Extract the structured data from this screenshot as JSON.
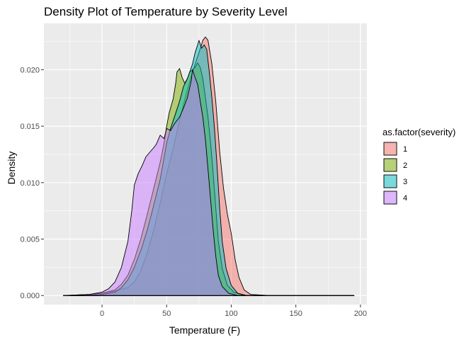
{
  "chart_data": {
    "type": "area",
    "title": "Density Plot of Temperature by Severity Level",
    "xlabel": "Temperature (F)",
    "ylabel": "Density",
    "xlim": [
      -45,
      205
    ],
    "ylim": [
      -0.0008,
      0.0241
    ],
    "x_ticks": [
      0,
      50,
      100,
      150,
      200
    ],
    "y_ticks": [
      0.0,
      0.005,
      0.01,
      0.015,
      0.02
    ],
    "y_tick_labels": [
      "0.000",
      "0.005",
      "0.010",
      "0.015",
      "0.020"
    ],
    "grid": true,
    "legend_title": "as.factor(severity)",
    "legend_position": "right",
    "series": [
      {
        "name": "1",
        "color": "#F8766D",
        "points": [
          [
            -30,
            0
          ],
          [
            -10,
            0.0001
          ],
          [
            0,
            0.0002
          ],
          [
            10,
            0.0004
          ],
          [
            20,
            0.0007
          ],
          [
            25,
            0.0012
          ],
          [
            30,
            0.0022
          ],
          [
            35,
            0.0038
          ],
          [
            40,
            0.0058
          ],
          [
            45,
            0.0082
          ],
          [
            50,
            0.0108
          ],
          [
            55,
            0.013
          ],
          [
            60,
            0.0155
          ],
          [
            65,
            0.0178
          ],
          [
            70,
            0.0198
          ],
          [
            75,
            0.0215
          ],
          [
            78,
            0.0226
          ],
          [
            80,
            0.0229
          ],
          [
            82,
            0.0226
          ],
          [
            85,
            0.0205
          ],
          [
            88,
            0.0172
          ],
          [
            91,
            0.0128
          ],
          [
            94,
            0.0095
          ],
          [
            97,
            0.0072
          ],
          [
            100,
            0.0055
          ],
          [
            103,
            0.0032
          ],
          [
            106,
            0.0016
          ],
          [
            110,
            0.0005
          ],
          [
            115,
            0.0001
          ],
          [
            130,
            0
          ],
          [
            195,
            0
          ]
        ]
      },
      {
        "name": "2",
        "color": "#7CAE00",
        "points": [
          [
            -30,
            0
          ],
          [
            -20,
            5e-05
          ],
          [
            -10,
            0.0001
          ],
          [
            0,
            0.0002
          ],
          [
            10,
            0.0005
          ],
          [
            15,
            0.001
          ],
          [
            20,
            0.0018
          ],
          [
            25,
            0.0032
          ],
          [
            30,
            0.005
          ],
          [
            35,
            0.0072
          ],
          [
            40,
            0.0095
          ],
          [
            45,
            0.0118
          ],
          [
            48,
            0.0135
          ],
          [
            50,
            0.015
          ],
          [
            52,
            0.0162
          ],
          [
            55,
            0.0174
          ],
          [
            57,
            0.0188
          ],
          [
            58,
            0.0198
          ],
          [
            60,
            0.0201
          ],
          [
            62,
            0.0193
          ],
          [
            64,
            0.0188
          ],
          [
            66,
            0.0192
          ],
          [
            68,
            0.0198
          ],
          [
            70,
            0.02
          ],
          [
            72,
            0.0202
          ],
          [
            74,
            0.0206
          ],
          [
            76,
            0.0202
          ],
          [
            78,
            0.0192
          ],
          [
            80,
            0.0175
          ],
          [
            82,
            0.0158
          ],
          [
            84,
            0.0135
          ],
          [
            86,
            0.0108
          ],
          [
            88,
            0.0078
          ],
          [
            90,
            0.0048
          ],
          [
            93,
            0.0024
          ],
          [
            97,
            0.0009
          ],
          [
            102,
            0.0003
          ],
          [
            110,
            0
          ],
          [
            195,
            0
          ]
        ]
      },
      {
        "name": "3",
        "color": "#00BFC4",
        "points": [
          [
            -30,
            0
          ],
          [
            -10,
            5e-05
          ],
          [
            0,
            0.0001
          ],
          [
            10,
            0.0003
          ],
          [
            15,
            0.0007
          ],
          [
            20,
            0.0014
          ],
          [
            25,
            0.0025
          ],
          [
            30,
            0.004
          ],
          [
            35,
            0.0058
          ],
          [
            40,
            0.008
          ],
          [
            45,
            0.0103
          ],
          [
            48,
            0.0122
          ],
          [
            50,
            0.0135
          ],
          [
            53,
            0.0148
          ],
          [
            56,
            0.0158
          ],
          [
            60,
            0.0172
          ],
          [
            63,
            0.0185
          ],
          [
            66,
            0.0192
          ],
          [
            70,
            0.0205
          ],
          [
            72,
            0.0215
          ],
          [
            74,
            0.0222
          ],
          [
            75,
            0.0226
          ],
          [
            77,
            0.0219
          ],
          [
            79,
            0.0222
          ],
          [
            81,
            0.0218
          ],
          [
            83,
            0.0198
          ],
          [
            85,
            0.0175
          ],
          [
            87,
            0.0148
          ],
          [
            89,
            0.0115
          ],
          [
            91,
            0.0078
          ],
          [
            93,
            0.0048
          ],
          [
            96,
            0.0024
          ],
          [
            100,
            0.0009
          ],
          [
            105,
            0.0002
          ],
          [
            112,
            0
          ],
          [
            195,
            0
          ]
        ]
      },
      {
        "name": "4",
        "color": "#C77CFF",
        "points": [
          [
            -25,
            0
          ],
          [
            -10,
            0.0001
          ],
          [
            0,
            0.0003
          ],
          [
            5,
            0.0006
          ],
          [
            10,
            0.0012
          ],
          [
            15,
            0.0025
          ],
          [
            20,
            0.0048
          ],
          [
            23,
            0.0075
          ],
          [
            25,
            0.0098
          ],
          [
            28,
            0.0108
          ],
          [
            31,
            0.0115
          ],
          [
            34,
            0.0123
          ],
          [
            37,
            0.0127
          ],
          [
            40,
            0.0131
          ],
          [
            42,
            0.0134
          ],
          [
            45,
            0.0142
          ],
          [
            48,
            0.0139
          ],
          [
            50,
            0.0148
          ],
          [
            53,
            0.0146
          ],
          [
            56,
            0.0152
          ],
          [
            60,
            0.0158
          ],
          [
            63,
            0.0166
          ],
          [
            66,
            0.0175
          ],
          [
            69,
            0.019
          ],
          [
            70,
            0.02
          ],
          [
            72,
            0.0193
          ],
          [
            74,
            0.0187
          ],
          [
            76,
            0.0172
          ],
          [
            78,
            0.0158
          ],
          [
            80,
            0.0138
          ],
          [
            82,
            0.0112
          ],
          [
            84,
            0.0085
          ],
          [
            86,
            0.0058
          ],
          [
            88,
            0.0035
          ],
          [
            90,
            0.0018
          ],
          [
            93,
            0.0008
          ],
          [
            98,
            0.0002
          ],
          [
            105,
            0
          ],
          [
            195,
            0
          ]
        ]
      }
    ]
  }
}
